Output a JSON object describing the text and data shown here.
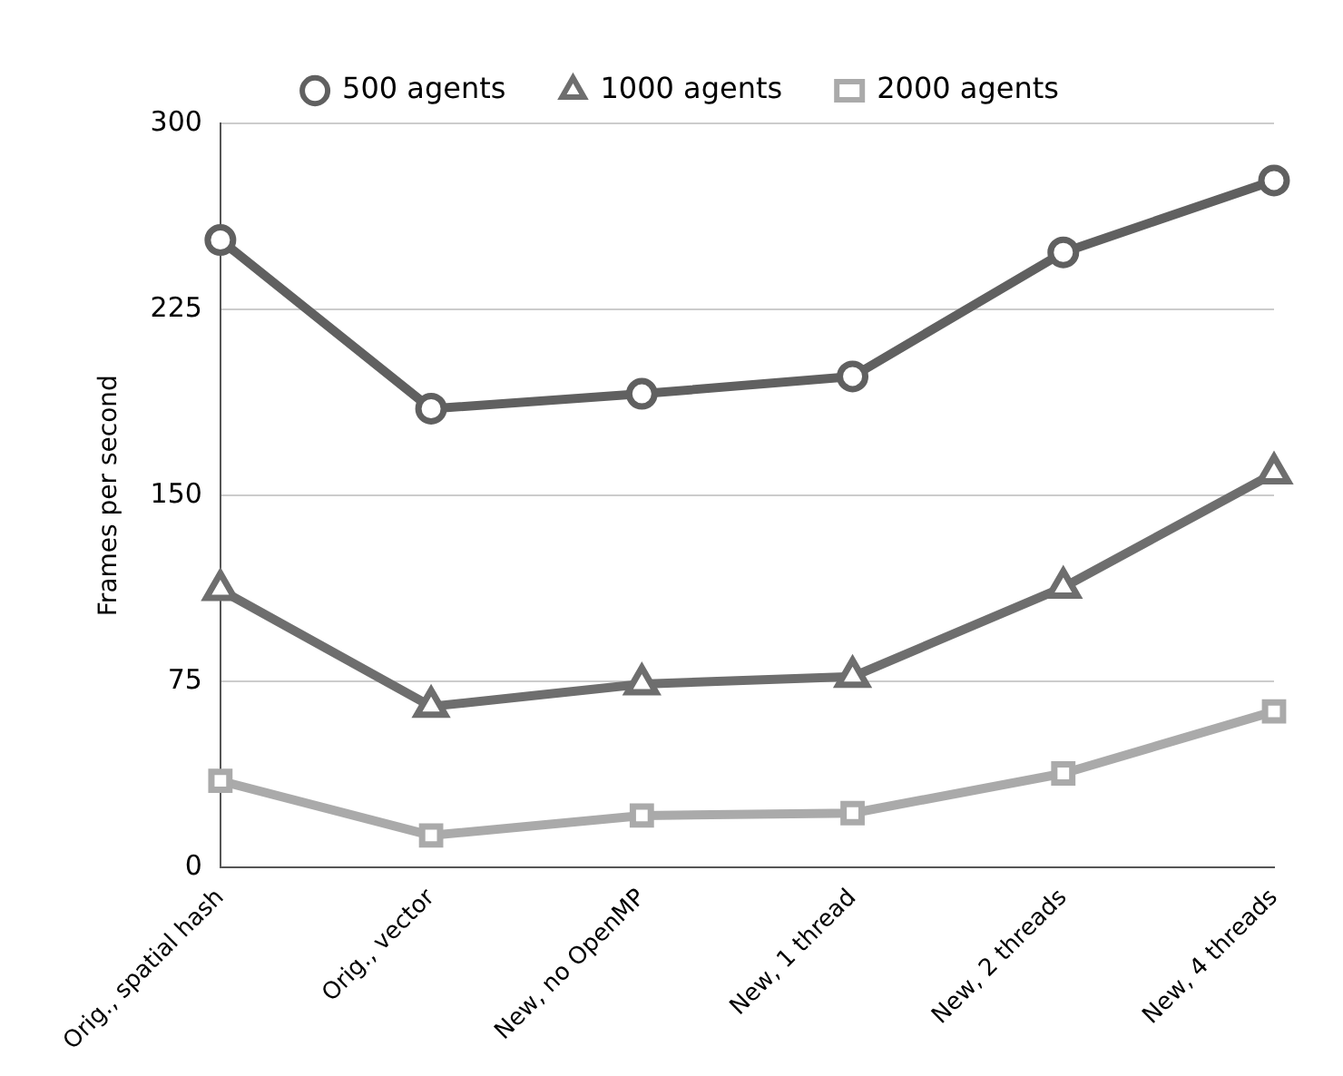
{
  "chart_data": {
    "type": "line",
    "ylabel": "Frames per second",
    "categories": [
      "Orig., spatial hash",
      "Orig., vector",
      "New, no OpenMP",
      "New, 1 thread",
      "New, 2 threads",
      "New, 4 threads"
    ],
    "series": [
      {
        "name": "500 agents",
        "color": "#606060",
        "marker": "circle",
        "values": [
          253,
          185,
          191,
          198,
          248,
          277
        ]
      },
      {
        "name": "1000 agents",
        "color": "#6e6e6e",
        "marker": "triangle",
        "values": [
          112,
          65,
          74,
          77,
          113,
          159
        ]
      },
      {
        "name": "2000 agents",
        "color": "#aaaaaa",
        "marker": "square",
        "values": [
          35,
          13,
          21,
          22,
          38,
          63
        ]
      }
    ],
    "ylim": [
      0,
      300
    ],
    "yticks": [
      0,
      75,
      150,
      225,
      300
    ],
    "grid": "y",
    "legend": "top",
    "line_style": "solid"
  }
}
